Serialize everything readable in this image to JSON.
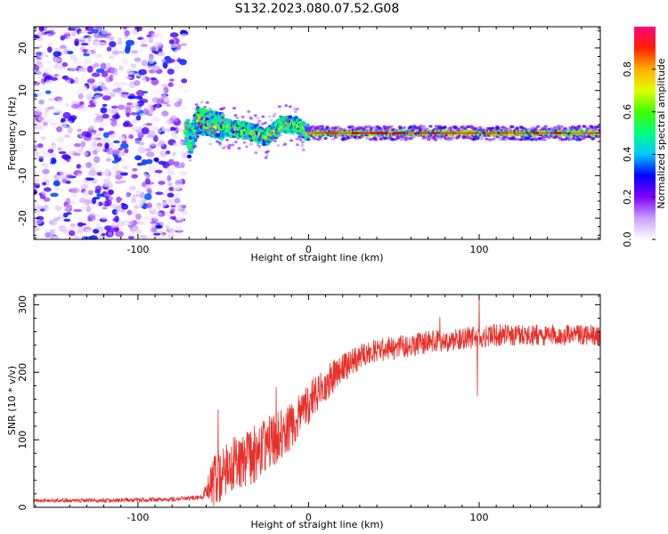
{
  "figure_title": "S132.2023.080.07.52.G08",
  "chart_data": [
    {
      "type": "heatmap",
      "title": "S132.2023.080.07.52.G08",
      "xlabel": "Height of straight line (km)",
      "ylabel": "Frequency (Hz)",
      "xlim": [
        -161,
        171
      ],
      "ylim": [
        -25,
        25
      ],
      "xticks": [
        -100,
        0,
        100
      ],
      "yticks": [
        -20,
        -10,
        0,
        10,
        20
      ],
      "xtick_labels": [
        "-100",
        "0",
        "100"
      ],
      "ytick_labels": [
        "-20",
        "-10",
        "0",
        "10",
        "20"
      ],
      "colorbar": {
        "label": "Normalized spectral amplitude",
        "range": [
          0,
          1
        ],
        "ticks": [
          0.0,
          0.2,
          0.4,
          0.6,
          0.8
        ],
        "tick_labels": [
          "0.0",
          "0.2",
          "0.4",
          "0.6",
          "0.8"
        ],
        "colors": [
          "#ffffff",
          "#c8a0ff",
          "#8000ff",
          "#0000ff",
          "#00c8ff",
          "#00ff80",
          "#40ff00",
          "#e0ff00",
          "#ffb000",
          "#ff2000",
          "#ff0080"
        ]
      },
      "regions": [
        {
          "name": "noise",
          "x_range": [
            -161,
            -72
          ],
          "freq_range": [
            -25,
            25
          ],
          "amplitude": [
            0.0,
            0.35
          ]
        },
        {
          "name": "onset",
          "x_range": [
            -72,
            0
          ],
          "center_freq_hz": [
            [
              -70,
              -3
            ],
            [
              -65,
              3
            ],
            [
              -55,
              2
            ],
            [
              -45,
              1
            ],
            [
              -35,
              0.5
            ],
            [
              -25,
              -1
            ],
            [
              -15,
              2
            ],
            [
              -8,
              2
            ],
            [
              0,
              0
            ]
          ],
          "amplitude": [
            0.3,
            0.8
          ]
        },
        {
          "name": "carrier",
          "x_range": [
            0,
            171
          ],
          "center_freq_hz": 0,
          "amplitude": [
            0.5,
            0.95
          ]
        }
      ]
    },
    {
      "type": "line",
      "xlabel": "Height of straight line (km)",
      "ylabel": "SNR (10 * v/v)",
      "xlim": [
        -161,
        171
      ],
      "ylim": [
        0,
        315
      ],
      "xticks": [
        -100,
        0,
        100
      ],
      "yticks": [
        0,
        100,
        200,
        300
      ],
      "xtick_labels": [
        "-100",
        "0",
        "100"
      ],
      "ytick_labels": [
        "0",
        "100",
        "200",
        "300"
      ],
      "series": [
        {
          "name": "SNR",
          "color": "#e8302a",
          "trend": {
            "x": [
              -161,
              -120,
              -80,
              -62,
              -55,
              -45,
              -35,
              -25,
              -15,
              -5,
              5,
              15,
              25,
              35,
              50,
              70,
              90,
              110,
              130,
              150,
              171
            ],
            "y": [
              10,
              10,
              12,
              15,
              40,
              60,
              75,
              90,
              110,
              135,
              170,
              195,
              215,
              230,
              235,
              245,
              250,
              255,
              255,
              255,
              255
            ]
          },
          "noise_amplitude": {
            "x": [
              -161,
              -62,
              -55,
              -30,
              0,
              30,
              171
            ],
            "y": [
              4,
              5,
              40,
              45,
              30,
              18,
              15
            ]
          },
          "spikes": [
            {
              "x": -53,
              "y": 145
            },
            {
              "x": 99,
              "y": 165
            },
            {
              "x": 100,
              "y": 312
            },
            {
              "x": 77,
              "y": 282
            },
            {
              "x": -19,
              "y": 178
            }
          ]
        }
      ]
    }
  ]
}
